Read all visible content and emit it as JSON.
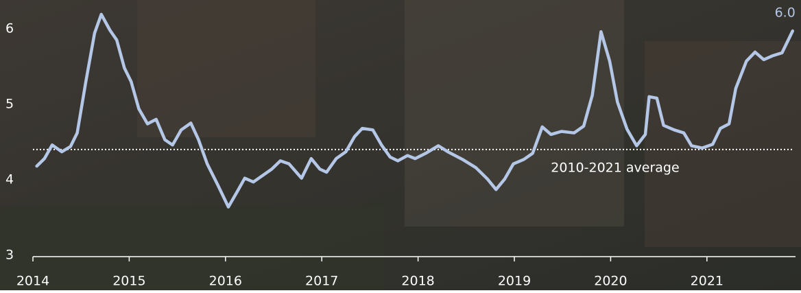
{
  "chart_data": {
    "type": "line",
    "x": [
      2014.04,
      2014.12,
      2014.2,
      2014.3,
      2014.39,
      2014.46,
      2014.55,
      2014.64,
      2014.71,
      2014.8,
      2014.87,
      2014.95,
      2015.02,
      2015.1,
      2015.19,
      2015.28,
      2015.37,
      2015.45,
      2015.54,
      2015.64,
      2015.72,
      2015.81,
      2015.92,
      2016.03,
      2016.12,
      2016.2,
      2016.29,
      2016.39,
      2016.48,
      2016.57,
      2016.66,
      2016.79,
      2016.89,
      2016.98,
      2017.05,
      2017.15,
      2017.25,
      2017.34,
      2017.42,
      2017.53,
      2017.62,
      2017.71,
      2017.79,
      2017.89,
      2017.97,
      2018.08,
      2018.21,
      2018.31,
      2018.46,
      2018.6,
      2018.72,
      2018.81,
      2018.9,
      2018.99,
      2019.1,
      2019.19,
      2019.29,
      2019.38,
      2019.49,
      2019.62,
      2019.72,
      2019.81,
      2019.9,
      2019.99,
      2020.07,
      2020.17,
      2020.27,
      2020.36,
      2020.4,
      2020.48,
      2020.55,
      2020.66,
      2020.76,
      2020.84,
      2020.95,
      2021.06,
      2021.14,
      2021.23,
      2021.3,
      2021.41,
      2021.5,
      2021.59,
      2021.68,
      2021.78,
      2021.89
    ],
    "series": [
      {
        "color": "#b4c7e7",
        "values": [
          4.18,
          4.28,
          4.46,
          4.37,
          4.44,
          4.62,
          5.3,
          5.94,
          6.19,
          5.98,
          5.85,
          5.48,
          5.3,
          4.94,
          4.74,
          4.8,
          4.53,
          4.46,
          4.66,
          4.75,
          4.53,
          4.21,
          3.93,
          3.64,
          3.84,
          4.02,
          3.97,
          4.06,
          4.14,
          4.25,
          4.21,
          4.02,
          4.28,
          4.14,
          4.1,
          4.28,
          4.37,
          4.57,
          4.68,
          4.66,
          4.46,
          4.3,
          4.25,
          4.32,
          4.28,
          4.35,
          4.45,
          4.37,
          4.27,
          4.16,
          4.01,
          3.87,
          4.01,
          4.21,
          4.27,
          4.35,
          4.7,
          4.6,
          4.64,
          4.62,
          4.71,
          5.12,
          5.96,
          5.57,
          5.03,
          4.67,
          4.45,
          4.6,
          5.1,
          5.08,
          4.72,
          4.66,
          4.62,
          4.45,
          4.42,
          4.47,
          4.68,
          4.74,
          5.21,
          5.57,
          5.69,
          5.59,
          5.64,
          5.68,
          5.97
        ]
      }
    ],
    "last_value_label": "6.0",
    "average": 4.4,
    "average_label": "2010-2021 average",
    "xlim": [
      2014,
      2021.92
    ],
    "xticks": [
      2014,
      2015,
      2016,
      2017,
      2018,
      2019,
      2020,
      2021
    ],
    "ylim": [
      3,
      6.38
    ],
    "yticks": [
      3,
      4,
      5,
      6
    ]
  }
}
